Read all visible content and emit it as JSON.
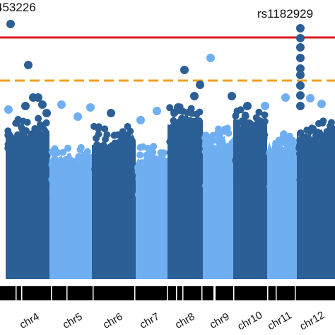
{
  "chart_data": {
    "type": "scatter",
    "title": "",
    "xlabel": "",
    "ylabel": "",
    "chromosomes": [
      {
        "name": "chr4",
        "color": "#2b5f96"
      },
      {
        "name": "chr5",
        "color": "#6faff1"
      },
      {
        "name": "chr6",
        "color": "#2b5f96"
      },
      {
        "name": "chr7",
        "color": "#6faff1"
      },
      {
        "name": "chr8",
        "color": "#2b5f96"
      },
      {
        "name": "chr9",
        "color": "#6faff1"
      },
      {
        "name": "chr10",
        "color": "#2b5f96"
      },
      {
        "name": "chr11",
        "color": "#6faff1"
      },
      {
        "name": "chr12",
        "color": "#2b5f96"
      }
    ],
    "thresholds": [
      {
        "kind": "genome-wide significance",
        "color": "#d7191c",
        "style": "solid"
      },
      {
        "kind": "suggestive",
        "color": "#f0a020",
        "style": "dashed"
      }
    ],
    "annotated_snps": [
      {
        "label": "453226",
        "chromosome": "chr4"
      },
      {
        "label": "rs1182929",
        "chromosome": "chr11"
      }
    ],
    "colors": {
      "dark": "#2b5f96",
      "light": "#6faff1",
      "track": "#000000"
    }
  }
}
